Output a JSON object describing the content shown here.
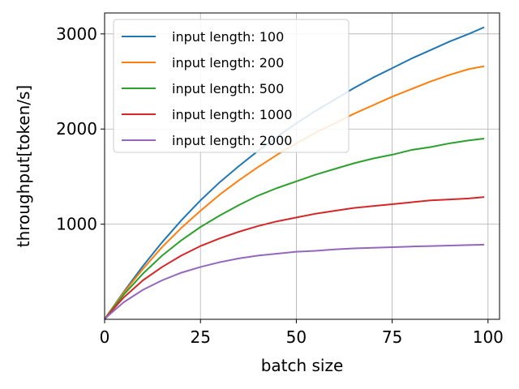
{
  "chart_data": {
    "type": "line",
    "title": "",
    "xlabel": "batch size",
    "ylabel": "throughput[token/s]",
    "xlim": [
      0,
      103
    ],
    "ylim": [
      0,
      3220
    ],
    "xticks": [
      0,
      25,
      50,
      75,
      100
    ],
    "yticks": [
      1000,
      2000,
      3000
    ],
    "grid": true,
    "legend_position": "top-left",
    "x": [
      1,
      5,
      10,
      15,
      20,
      25,
      30,
      35,
      40,
      45,
      50,
      55,
      60,
      65,
      70,
      75,
      80,
      85,
      90,
      95,
      99
    ],
    "series": [
      {
        "name": "input length: 100",
        "color": "#1f77b4",
        "values": [
          60,
          290,
          560,
          810,
          1040,
          1250,
          1440,
          1610,
          1770,
          1920,
          2060,
          2190,
          2310,
          2430,
          2540,
          2640,
          2740,
          2830,
          2920,
          3000,
          3070
        ]
      },
      {
        "name": "input length: 200",
        "color": "#ff7f0e",
        "values": [
          58,
          280,
          530,
          760,
          960,
          1140,
          1310,
          1460,
          1600,
          1730,
          1850,
          1960,
          2060,
          2160,
          2250,
          2340,
          2420,
          2500,
          2570,
          2630,
          2660
        ]
      },
      {
        "name": "input length: 500",
        "color": "#2ca02c",
        "values": [
          55,
          260,
          480,
          670,
          830,
          970,
          1090,
          1200,
          1300,
          1380,
          1450,
          1520,
          1580,
          1640,
          1690,
          1730,
          1780,
          1810,
          1850,
          1880,
          1900
        ]
      },
      {
        "name": "input length: 1000",
        "color": "#d62728",
        "values": [
          50,
          230,
          410,
          550,
          670,
          770,
          850,
          920,
          980,
          1030,
          1070,
          1110,
          1140,
          1170,
          1190,
          1210,
          1230,
          1250,
          1260,
          1270,
          1285
        ]
      },
      {
        "name": "input length: 2000",
        "color": "#9467bd",
        "values": [
          40,
          180,
          310,
          410,
          490,
          550,
          600,
          640,
          670,
          690,
          710,
          720,
          735,
          745,
          752,
          758,
          765,
          770,
          775,
          780,
          785
        ]
      }
    ]
  }
}
